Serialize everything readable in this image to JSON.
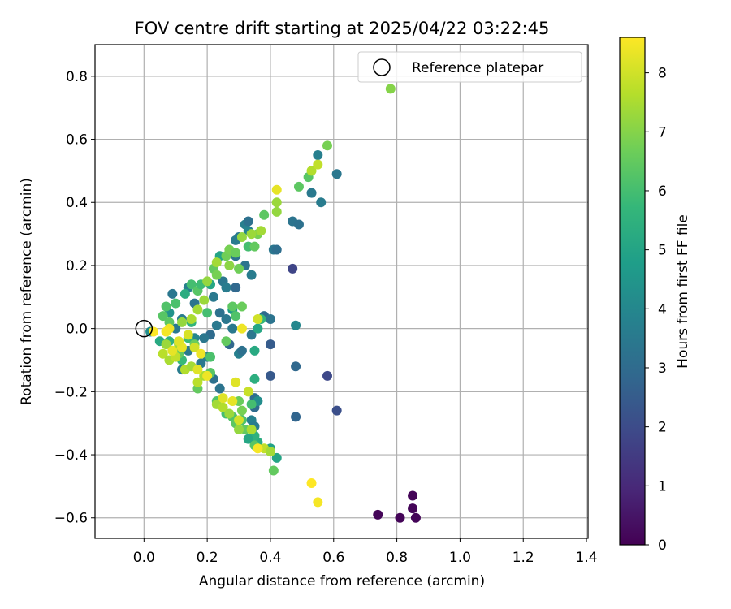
{
  "chart_data": {
    "type": "scatter",
    "title": "FOV centre drift starting at 2025/04/22 03:22:45",
    "xlabel": "Angular distance from reference (arcmin)",
    "ylabel": "Rotation from reference (arcmin)",
    "xlim": [
      -0.155,
      1.405
    ],
    "ylim": [
      -0.665,
      0.9
    ],
    "xticks": [
      0.0,
      0.2,
      0.4,
      0.6,
      0.8,
      1.0,
      1.2,
      1.4
    ],
    "xtick_labels": [
      "0.0",
      "0.2",
      "0.4",
      "0.6",
      "0.8",
      "1.0",
      "1.2",
      "1.4"
    ],
    "yticks": [
      0.8,
      0.6,
      0.4,
      0.2,
      0.0,
      -0.2,
      -0.4,
      -0.6
    ],
    "ytick_labels": [
      "0.8",
      "0.6",
      "0.4",
      "0.2",
      "0.0",
      "−0.2",
      "−0.4",
      "−0.6"
    ],
    "grid": true,
    "legend": {
      "placement": "top-right",
      "label": "Reference platepar"
    },
    "reference_point": {
      "x": 0.0,
      "y": 0.0
    },
    "colorbar": {
      "label": "Hours from first FF file",
      "colormap": "viridis",
      "range": [
        0,
        8.6
      ],
      "ticks": [
        0,
        1,
        2,
        3,
        4,
        5,
        6,
        7,
        8
      ],
      "tick_labels": [
        "0",
        "1",
        "2",
        "3",
        "4",
        "5",
        "6",
        "7",
        "8"
      ],
      "stops": [
        "#440154",
        "#482878",
        "#3e4989",
        "#31688e",
        "#26828e",
        "#1f9e89",
        "#35b779",
        "#6ece58",
        "#b5de2b",
        "#fde725"
      ]
    },
    "points": [
      [
        0.74,
        -0.59,
        0.1
      ],
      [
        0.81,
        -0.6,
        0.1
      ],
      [
        0.85,
        -0.57,
        0.1
      ],
      [
        0.86,
        -0.6,
        0.1
      ],
      [
        0.85,
        -0.53,
        0.1
      ],
      [
        0.47,
        0.19,
        1.8
      ],
      [
        0.58,
        -0.15,
        1.9
      ],
      [
        0.61,
        -0.26,
        2.1
      ],
      [
        0.4,
        -0.15,
        2.4
      ],
      [
        0.4,
        -0.05,
        2.5
      ],
      [
        0.48,
        -0.28,
        2.8
      ],
      [
        0.48,
        -0.12,
        2.9
      ],
      [
        0.61,
        0.49,
        3.4
      ],
      [
        0.53,
        0.43,
        3.5
      ],
      [
        0.55,
        0.55,
        3.7
      ],
      [
        0.56,
        0.4,
        3.6
      ],
      [
        0.47,
        0.34,
        3.3
      ],
      [
        0.49,
        0.33,
        3.2
      ],
      [
        0.41,
        0.25,
        3.4
      ],
      [
        0.42,
        0.25,
        3.1
      ],
      [
        0.38,
        0.04,
        3.0
      ],
      [
        0.4,
        0.03,
        3.3
      ],
      [
        0.48,
        0.01,
        4.0
      ],
      [
        0.34,
        0.17,
        3.6
      ],
      [
        0.32,
        0.2,
        3.3
      ],
      [
        0.3,
        0.29,
        3.5
      ],
      [
        0.32,
        0.33,
        3.7
      ],
      [
        0.33,
        0.34,
        3.2
      ],
      [
        0.29,
        0.13,
        2.9
      ],
      [
        0.29,
        0.23,
        3.3
      ],
      [
        0.25,
        0.15,
        3.4
      ],
      [
        0.26,
        0.13,
        3.6
      ],
      [
        0.24,
        0.05,
        3.2
      ],
      [
        0.26,
        0.03,
        3.4
      ],
      [
        0.21,
        -0.02,
        3.0
      ],
      [
        0.27,
        -0.05,
        2.9
      ],
      [
        0.28,
        0.0,
        3.5
      ],
      [
        0.3,
        -0.08,
        3.7
      ],
      [
        0.31,
        -0.07,
        3.2
      ],
      [
        0.34,
        -0.02,
        3.4
      ],
      [
        0.35,
        -0.22,
        3.1
      ],
      [
        0.35,
        -0.25,
        3.0
      ],
      [
        0.34,
        -0.29,
        3.8
      ],
      [
        0.35,
        -0.31,
        3.6
      ],
      [
        0.22,
        -0.16,
        3.2
      ],
      [
        0.24,
        -0.19,
        3.3
      ],
      [
        0.2,
        -0.09,
        3.8
      ],
      [
        0.18,
        -0.11,
        3.4
      ],
      [
        0.12,
        -0.13,
        3.6
      ],
      [
        0.09,
        0.11,
        3.4
      ],
      [
        0.14,
        0.13,
        3.7
      ],
      [
        0.16,
        0.08,
        3.3
      ],
      [
        0.22,
        0.1,
        3.5
      ],
      [
        0.29,
        0.28,
        3.6
      ],
      [
        0.33,
        0.31,
        3.9
      ],
      [
        0.1,
        0.0,
        3.5
      ],
      [
        0.12,
        0.03,
        3.6
      ],
      [
        0.14,
        -0.07,
        3.5
      ],
      [
        0.19,
        -0.03,
        3.4
      ],
      [
        0.23,
        0.01,
        3.5
      ],
      [
        0.16,
        -0.03,
        4.0
      ],
      [
        0.02,
        -0.01,
        4.2
      ],
      [
        0.08,
        0.05,
        4.4
      ],
      [
        0.28,
        0.06,
        4.6
      ],
      [
        0.36,
        -0.23,
        4.2
      ],
      [
        0.4,
        -0.38,
        4.9
      ],
      [
        0.42,
        -0.41,
        5.0
      ],
      [
        0.36,
        -0.36,
        5.3
      ],
      [
        0.35,
        -0.34,
        5.5
      ],
      [
        0.33,
        -0.35,
        5.1
      ],
      [
        0.36,
        0.0,
        5.1
      ],
      [
        0.37,
        0.03,
        5.6
      ],
      [
        0.35,
        -0.07,
        5.2
      ],
      [
        0.35,
        -0.16,
        5.4
      ],
      [
        0.21,
        0.14,
        5.1
      ],
      [
        0.24,
        0.23,
        5.0
      ],
      [
        0.15,
        0.02,
        5.6
      ],
      [
        0.13,
        0.11,
        5.3
      ],
      [
        0.05,
        -0.04,
        5.2
      ],
      [
        0.08,
        -0.04,
        5.5
      ],
      [
        0.12,
        -0.1,
        5.8
      ],
      [
        0.1,
        0.08,
        6.1
      ],
      [
        0.15,
        0.14,
        6.0
      ],
      [
        0.17,
        0.12,
        6.3
      ],
      [
        0.18,
        0.14,
        5.9
      ],
      [
        0.2,
        0.05,
        6.0
      ],
      [
        0.21,
        -0.09,
        6.1
      ],
      [
        0.14,
        -0.03,
        5.8
      ],
      [
        0.06,
        0.04,
        6.3
      ],
      [
        0.07,
        0.07,
        6.2
      ],
      [
        0.08,
        0.02,
        6.4
      ],
      [
        0.11,
        -0.08,
        6.5
      ],
      [
        0.16,
        -0.05,
        6.6
      ],
      [
        0.17,
        -0.19,
        6.5
      ],
      [
        0.21,
        -0.14,
        6.3
      ],
      [
        0.23,
        -0.23,
        6.2
      ],
      [
        0.26,
        -0.27,
        6.0
      ],
      [
        0.28,
        -0.28,
        6.2
      ],
      [
        0.29,
        -0.3,
        6.4
      ],
      [
        0.31,
        -0.29,
        6.1
      ],
      [
        0.32,
        -0.32,
        6.5
      ],
      [
        0.35,
        -0.37,
        6.3
      ],
      [
        0.34,
        -0.24,
        6.0
      ],
      [
        0.41,
        -0.45,
        6.5
      ],
      [
        0.28,
        0.07,
        6.4
      ],
      [
        0.29,
        0.04,
        6.2
      ],
      [
        0.31,
        0.07,
        6.6
      ],
      [
        0.33,
        0.26,
        6.0
      ],
      [
        0.35,
        0.26,
        6.5
      ],
      [
        0.36,
        0.3,
        6.8
      ],
      [
        0.38,
        0.36,
        6.4
      ],
      [
        0.26,
        0.23,
        6.7
      ],
      [
        0.27,
        0.25,
        6.8
      ],
      [
        0.29,
        0.24,
        6.6
      ],
      [
        0.3,
        0.19,
        6.7
      ],
      [
        0.22,
        0.19,
        6.5
      ],
      [
        0.23,
        0.17,
        6.8
      ],
      [
        0.26,
        -0.04,
        6.5
      ],
      [
        0.3,
        -0.23,
        6.6
      ],
      [
        0.31,
        -0.26,
        6.8
      ],
      [
        0.49,
        0.45,
        6.4
      ],
      [
        0.52,
        0.48,
        6.3
      ],
      [
        0.58,
        0.58,
        6.8
      ],
      [
        0.78,
        0.76,
        7.0
      ],
      [
        0.42,
        0.37,
        7.2
      ],
      [
        0.42,
        0.4,
        7.3
      ],
      [
        0.37,
        0.31,
        7.4
      ],
      [
        0.34,
        0.3,
        7.3
      ],
      [
        0.31,
        0.29,
        7.2
      ],
      [
        0.27,
        0.2,
        7.1
      ],
      [
        0.23,
        0.21,
        7.4
      ],
      [
        0.2,
        0.15,
        7.2
      ],
      [
        0.19,
        0.09,
        7.3
      ],
      [
        0.17,
        0.06,
        7.4
      ],
      [
        0.15,
        0.03,
        7.5
      ],
      [
        0.12,
        0.02,
        7.2
      ],
      [
        0.11,
        -0.05,
        7.4
      ],
      [
        0.09,
        -0.07,
        7.6
      ],
      [
        0.06,
        -0.08,
        7.7
      ],
      [
        0.07,
        -0.05,
        7.3
      ],
      [
        0.08,
        -0.1,
        7.5
      ],
      [
        0.1,
        -0.09,
        7.8
      ],
      [
        0.13,
        -0.13,
        7.6
      ],
      [
        0.15,
        -0.12,
        7.4
      ],
      [
        0.17,
        -0.17,
        7.7
      ],
      [
        0.19,
        -0.15,
        7.5
      ],
      [
        0.23,
        -0.24,
        7.4
      ],
      [
        0.25,
        -0.25,
        7.6
      ],
      [
        0.27,
        -0.27,
        7.3
      ],
      [
        0.3,
        -0.32,
        7.2
      ],
      [
        0.34,
        -0.32,
        7.5
      ],
      [
        0.38,
        -0.38,
        7.8
      ],
      [
        0.4,
        -0.39,
        7.4
      ],
      [
        0.53,
        0.5,
        7.6
      ],
      [
        0.55,
        0.52,
        7.8
      ],
      [
        0.33,
        -0.2,
        7.9
      ],
      [
        0.3,
        -0.29,
        8.0
      ],
      [
        0.25,
        -0.22,
        8.2
      ],
      [
        0.28,
        -0.23,
        8.3
      ],
      [
        0.2,
        -0.15,
        8.4
      ],
      [
        0.17,
        -0.13,
        8.2
      ],
      [
        0.16,
        -0.06,
        8.0
      ],
      [
        0.14,
        -0.02,
        8.1
      ],
      [
        0.12,
        -0.06,
        8.3
      ],
      [
        0.11,
        -0.04,
        8.2
      ],
      [
        0.09,
        -0.07,
        8.3
      ],
      [
        0.08,
        0.0,
        8.4
      ],
      [
        0.03,
        -0.01,
        8.6
      ],
      [
        0.07,
        -0.01,
        8.5
      ],
      [
        0.29,
        -0.17,
        8.2
      ],
      [
        0.31,
        0.0,
        8.4
      ],
      [
        0.36,
        0.03,
        8.0
      ],
      [
        0.36,
        -0.38,
        8.5
      ],
      [
        0.42,
        0.44,
        8.3
      ],
      [
        0.53,
        -0.49,
        8.6
      ],
      [
        0.55,
        -0.55,
        8.5
      ],
      [
        0.18,
        -0.08,
        8.4
      ]
    ]
  }
}
